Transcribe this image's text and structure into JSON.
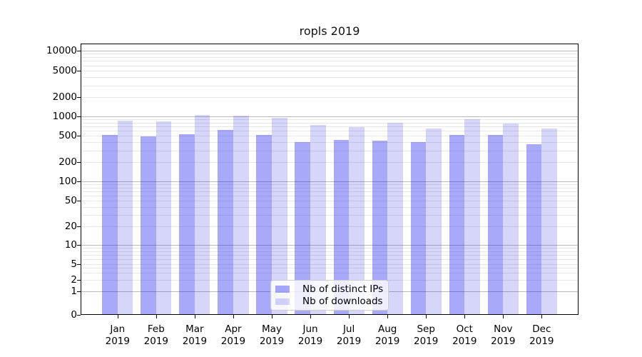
{
  "chart_data": {
    "type": "bar",
    "title": "ropls 2019",
    "categories": [
      "Jan",
      "Feb",
      "Mar",
      "Apr",
      "May",
      "Jun",
      "Jul",
      "Aug",
      "Sep",
      "Oct",
      "Nov",
      "Dec"
    ],
    "category_year": "2019",
    "series": [
      {
        "name": "Nb of distinct IPs",
        "color": "#0202f0",
        "alpha": 0.34,
        "values": [
          510,
          485,
          530,
          615,
          515,
          405,
          430,
          420,
          405,
          510,
          510,
          370
        ]
      },
      {
        "name": "Nb of downloads",
        "color": "#0202e8",
        "alpha": 0.16,
        "values": [
          850,
          835,
          1050,
          1020,
          950,
          735,
          680,
          795,
          645,
          910,
          780,
          650
        ]
      }
    ],
    "yscale": "symlog",
    "y_ticks": [
      0,
      1,
      2,
      5,
      10,
      20,
      50,
      100,
      200,
      500,
      1000,
      2000,
      5000,
      10000
    ],
    "ylim": [
      0,
      12800
    ],
    "xlabel": "",
    "ylabel": "",
    "grid": true,
    "legend_position": "lower center"
  },
  "colors": {
    "grid_major": "#bbbbbb",
    "grid_minor": "#e8e8e8",
    "axis": "#000000",
    "legend_border": "#cccccc"
  }
}
